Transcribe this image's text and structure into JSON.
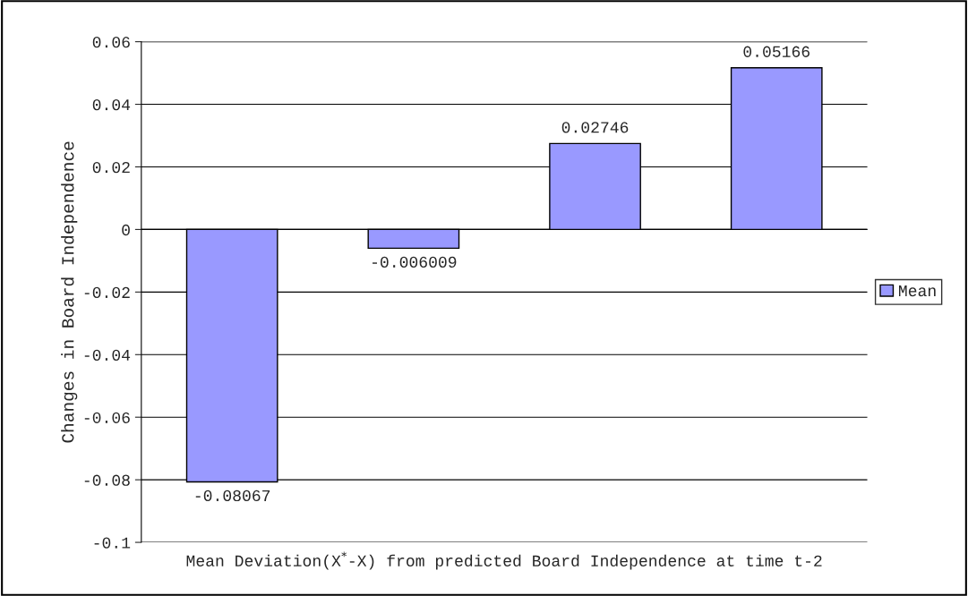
{
  "chart_data": {
    "type": "bar",
    "xlabel": "Mean Deviation(X$^{*}$-X) from predicted Board Independence at time t-2",
    "ylabel": "Changes in Board Independence",
    "categories": [
      null,
      null,
      null,
      null
    ],
    "series": [
      {
        "name": "Mean",
        "color": "#9999ff",
        "values": [
          -0.08067,
          -0.006009,
          0.02746,
          0.05166
        ]
      }
    ],
    "ylim": [
      -0.1,
      0.06
    ],
    "yticks": [
      -0.1,
      -0.08,
      -0.06,
      -0.04,
      -0.02,
      0,
      0.02,
      0.04,
      0.06
    ],
    "grid": "y",
    "legend": "right",
    "data_labels": true
  }
}
